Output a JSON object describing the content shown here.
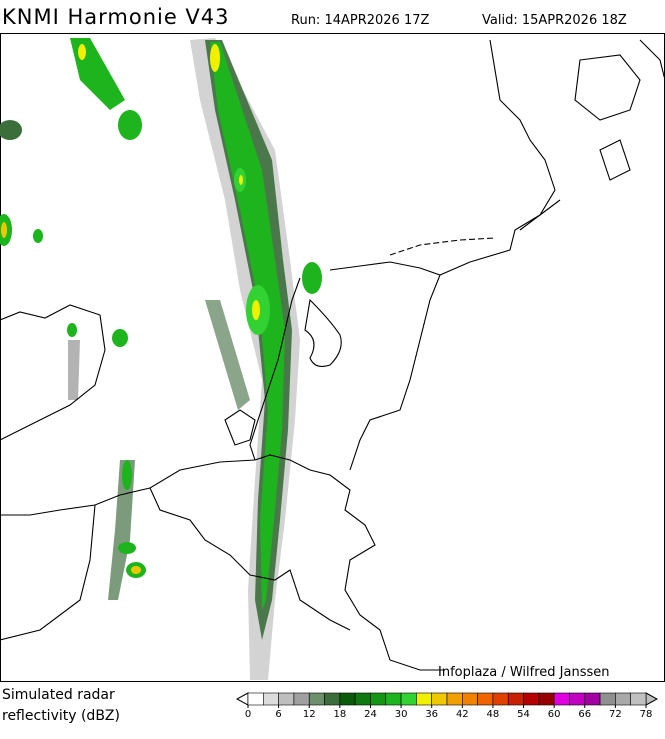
{
  "header": {
    "title": "KNMI Harmonie V43",
    "run": "Run: 14APR2026 17Z",
    "valid": "Valid: 15APR2026 18Z"
  },
  "credit": "Infoplaza / Wilfred Janssen",
  "legend": {
    "label_line1": "Simulated radar",
    "label_line2": "reflectivity (dBZ)",
    "ticks": [
      0,
      6,
      12,
      18,
      24,
      30,
      36,
      42,
      48,
      54,
      60,
      66,
      72,
      78
    ],
    "colors": [
      "#ffffff",
      "#dcdcdc",
      "#bebebe",
      "#a0a0a0",
      "#6e8f6e",
      "#3c6e3c",
      "#0a5a0a",
      "#0f780f",
      "#149614",
      "#1eb41e",
      "#32d232",
      "#f0f000",
      "#f0c800",
      "#f0a000",
      "#f08200",
      "#f06400",
      "#e04000",
      "#c82000",
      "#b40000",
      "#960000",
      "#e000e0",
      "#c000c0",
      "#a000a0",
      "#909090",
      "#a8a8a8",
      "#c0c0c0"
    ]
  }
}
